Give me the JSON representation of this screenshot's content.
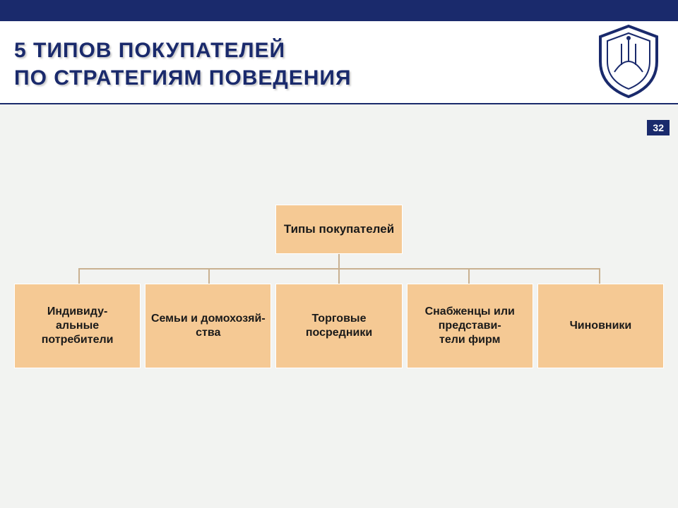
{
  "slide": {
    "title_line1": "5 ТИПОВ ПОКУПАТЕЛЕЙ",
    "title_line2": "ПО СТРАТЕГИЯМ ПОВЕДЕНИЯ",
    "page_number": "32"
  },
  "diagram": {
    "type": "tree",
    "root_label": "Типы покупателей",
    "children": [
      {
        "label": "Индивиду-\nальные потребители"
      },
      {
        "label": "Семьи и домохозяй-\nства"
      },
      {
        "label": "Торговые посредники"
      },
      {
        "label": "Снабженцы или представи-\nтели фирм"
      },
      {
        "label": "Чиновники"
      }
    ],
    "box_color": "#f5c994",
    "box_border": "#ffffff",
    "connector_color": "#c9b191",
    "text_color": "#1a1a1a",
    "title_color": "#1a2a6c",
    "background_color": "#f2f3f1",
    "root_fontsize": 17,
    "child_fontsize": 16,
    "title_fontsize": 30
  }
}
